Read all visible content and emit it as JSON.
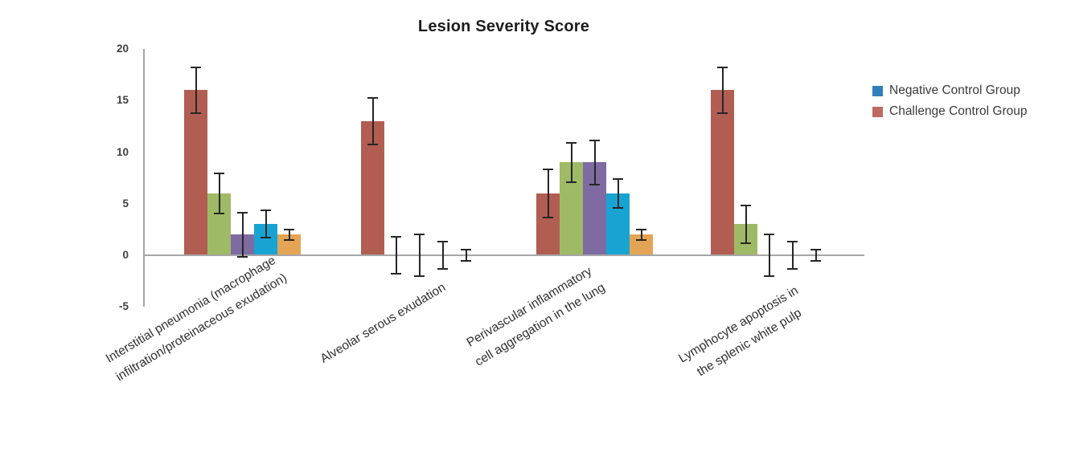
{
  "chart_data": {
    "type": "bar",
    "title": "Lesion Severity Score",
    "xlabel": "",
    "ylabel": "",
    "ylim": [
      -5,
      20
    ],
    "yticks": [
      20,
      15,
      10,
      5,
      0,
      -5
    ],
    "grid": false,
    "axis_color": "#a6a6a6",
    "error_bar_color": "#262626",
    "categories": [
      "Interstitial pneumonia (macrophage infiltration/proteinaceous exudation)",
      "Alveolar serous exudation",
      "Perivascular inflammatory cell aggregation in the lung",
      "Lymphocyte apoptosis in the splenic white pulp"
    ],
    "category_label_lines": [
      [
        "Interstitial pneumonia (macrophage",
        "infiltration/proteinaceous exudation)"
      ],
      [
        "Alveolar serous exudation"
      ],
      [
        "Perivascular inflammatory",
        "cell aggregation in the lung"
      ],
      [
        "Lymphocyte apoptosis in",
        "the splenic white pulp"
      ]
    ],
    "series": [
      {
        "name": "Challenge Control Group",
        "color": "#b25d52",
        "values": [
          16,
          13,
          6,
          16
        ],
        "errors": [
          2.3,
          2.3,
          2.4,
          2.3
        ]
      },
      {
        "name": "",
        "color": "#9fba66",
        "values": [
          6,
          0,
          9,
          3
        ],
        "errors": [
          2.0,
          1.9,
          2.0,
          1.9
        ]
      },
      {
        "name": "",
        "color": "#7d6ba2",
        "values": [
          2,
          0,
          9,
          0
        ],
        "errors": [
          2.2,
          2.1,
          2.2,
          2.1
        ]
      },
      {
        "name": "Negative Control Group",
        "color": "#17a4d2",
        "values": [
          3,
          0,
          6,
          0
        ],
        "errors": [
          1.4,
          1.4,
          1.5,
          1.4
        ]
      },
      {
        "name": "",
        "color": "#e4a455",
        "values": [
          2,
          0,
          2,
          0
        ],
        "errors": [
          0.6,
          0.6,
          0.6,
          0.6
        ]
      }
    ],
    "legend": {
      "position": "right",
      "entries": [
        {
          "label": "Negative Control Group",
          "color": "#2e7fba"
        },
        {
          "label": "Challenge Control Group",
          "color": "#bd6a5f"
        }
      ]
    }
  }
}
